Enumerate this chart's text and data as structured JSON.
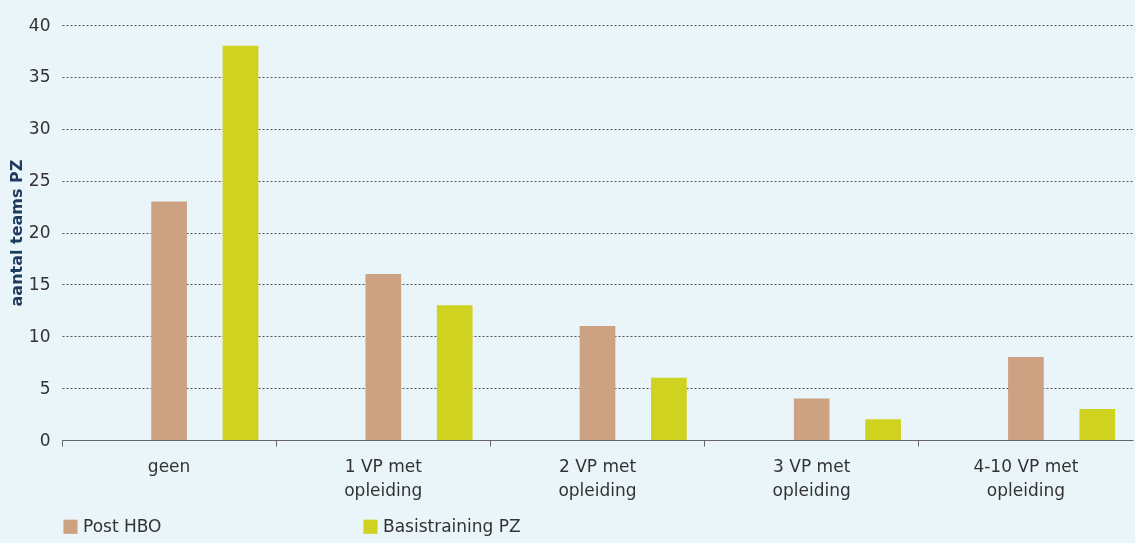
{
  "chart_data": {
    "type": "bar",
    "ylabel": "aantal teams PZ",
    "categories": [
      "geen",
      "1 VP met opleiding",
      "2 VP met opleiding",
      "3 VP met opleiding",
      "4-10 VP met opleiding"
    ],
    "series": [
      {
        "name": "Post HBO",
        "color": "#cda283",
        "values": [
          23,
          16,
          11,
          4,
          8
        ]
      },
      {
        "name": "Basistraining PZ",
        "color": "#cfd21e",
        "values": [
          38,
          13,
          6,
          2,
          3
        ]
      }
    ],
    "ylim": [
      0,
      40
    ],
    "yticks": [
      0,
      5,
      10,
      15,
      20,
      25,
      30,
      35,
      40
    ],
    "grid": "y",
    "legend": "bottom"
  }
}
